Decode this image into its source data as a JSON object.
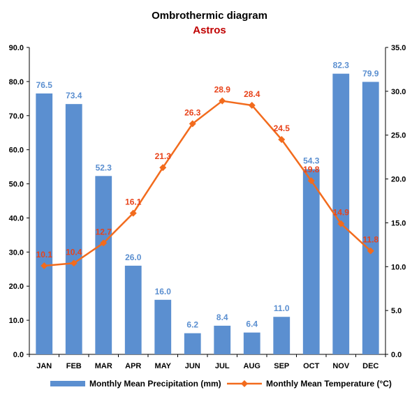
{
  "chart_data": {
    "type": "bar+line",
    "title": "Ombrothermic diagram",
    "subtitle": "Astros",
    "categories": [
      "JAN",
      "FEB",
      "MAR",
      "APR",
      "MAY",
      "JUN",
      "JUL",
      "AUG",
      "SEP",
      "OCT",
      "NOV",
      "DEC"
    ],
    "series": [
      {
        "name": "Monthly Mean Precipitation (mm)",
        "type": "bar",
        "axis": "left",
        "values": [
          76.5,
          73.4,
          52.3,
          26.0,
          16.0,
          6.2,
          8.4,
          6.4,
          11.0,
          54.3,
          82.3,
          79.9
        ],
        "labels": [
          "76.5",
          "73.4",
          "52.3",
          "26.0",
          "16.0",
          "6.2",
          "8.4",
          "6.4",
          "11.0",
          "54.3",
          "82.3",
          "79.9"
        ],
        "color": "#5b8fd0"
      },
      {
        "name": "Monthly Mean Temperature (°C)",
        "type": "line",
        "axis": "right",
        "values": [
          10.1,
          10.4,
          12.7,
          16.1,
          21.3,
          26.3,
          28.9,
          28.4,
          24.5,
          19.8,
          14.9,
          11.8
        ],
        "labels": [
          "10.1",
          "10.4",
          "12.7",
          "16.1",
          "21.3",
          "26.3",
          "28.9",
          "28.4",
          "24.5",
          "19.8",
          "14.9",
          "11.8"
        ],
        "color": "#f26b1d"
      }
    ],
    "y_left": {
      "range": [
        0,
        90
      ],
      "ticks": [
        "0.0",
        "10.0",
        "20.0",
        "30.0",
        "40.0",
        "50.0",
        "60.0",
        "70.0",
        "80.0",
        "90.0"
      ]
    },
    "y_right": {
      "range": [
        0,
        35
      ],
      "ticks": [
        "0.0",
        "5.0",
        "10.0",
        "15.0",
        "20.0",
        "25.0",
        "30.0",
        "35.0"
      ]
    },
    "grid": false,
    "legend": "bottom"
  }
}
